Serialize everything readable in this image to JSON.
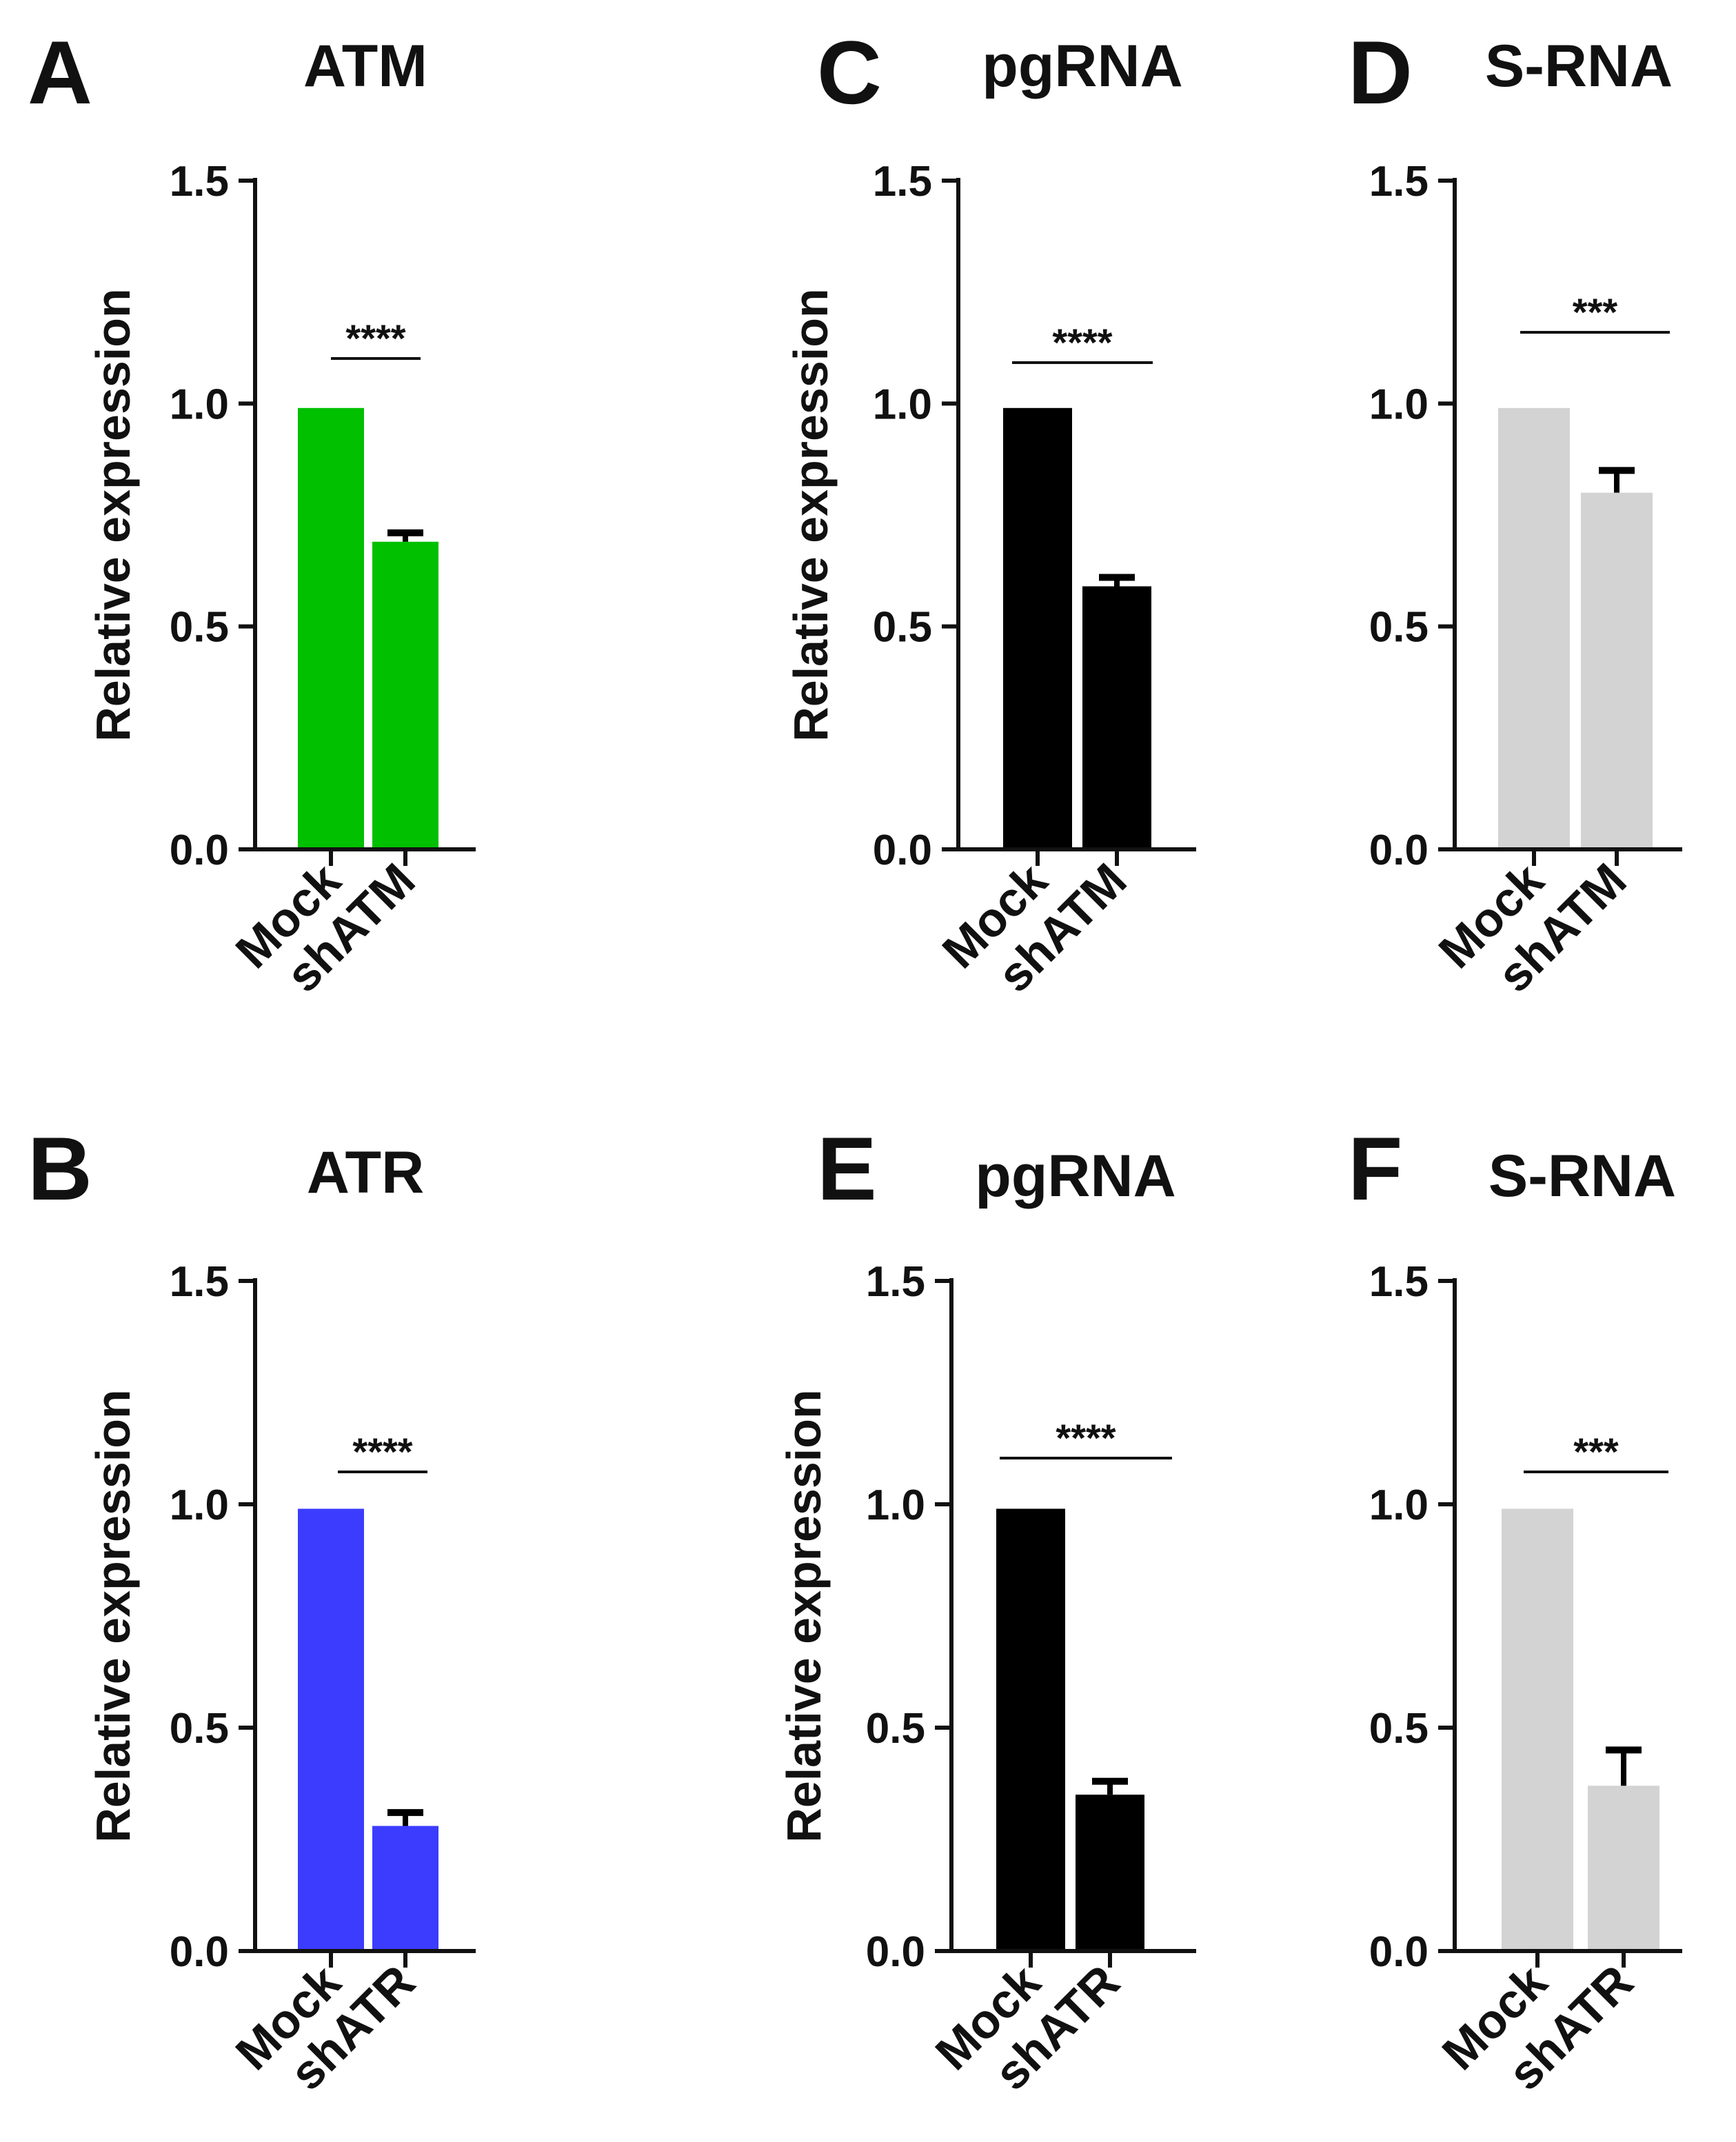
{
  "figure": {
    "panels": [
      {
        "letter": "A",
        "title": "ATM"
      },
      {
        "letter": "C",
        "title": "pgRNA"
      },
      {
        "letter": "D",
        "title": "S-RNA"
      },
      {
        "letter": "B",
        "title": "ATR"
      },
      {
        "letter": "E",
        "title": "pgRNA"
      },
      {
        "letter": "F",
        "title": "S-RNA"
      }
    ]
  },
  "chart_data": [
    {
      "panel": "A",
      "type": "bar",
      "title": "ATM",
      "xlabel": "",
      "ylabel": "Relative expression",
      "ylim": [
        0,
        1.5
      ],
      "yticks": [
        "0.0",
        "0.5",
        "1.0",
        "1.5"
      ],
      "categories": [
        "Mock",
        "shATM"
      ],
      "values": [
        0.99,
        0.69
      ],
      "errors": [
        0,
        0.02
      ],
      "significance": "****",
      "bar_color": "#00c000"
    },
    {
      "panel": "C",
      "type": "bar",
      "title": "pgRNA",
      "xlabel": "",
      "ylabel": "Relative expression",
      "ylim": [
        0,
        1.5
      ],
      "yticks": [
        "0.0",
        "0.5",
        "1.0",
        "1.5"
      ],
      "categories": [
        "Mock",
        "shATM"
      ],
      "values": [
        0.99,
        0.59
      ],
      "errors": [
        0,
        0.02
      ],
      "significance": "****",
      "bar_color": "#000000"
    },
    {
      "panel": "D",
      "type": "bar",
      "title": "S-RNA",
      "xlabel": "",
      "ylabel": "",
      "ylim": [
        0,
        1.5
      ],
      "yticks": [
        "0.0",
        "0.5",
        "1.0",
        "1.5"
      ],
      "categories": [
        "Mock",
        "shATM"
      ],
      "values": [
        0.99,
        0.8
      ],
      "errors": [
        0,
        0.05
      ],
      "significance": "***",
      "bar_color": "#d3d3d3"
    },
    {
      "panel": "B",
      "type": "bar",
      "title": "ATR",
      "xlabel": "",
      "ylabel": "Relative expression",
      "ylim": [
        0,
        1.5
      ],
      "yticks": [
        "0.0",
        "0.5",
        "1.0",
        "1.5"
      ],
      "categories": [
        "Mock",
        "shATR"
      ],
      "values": [
        0.99,
        0.28
      ],
      "errors": [
        0,
        0.03
      ],
      "significance": "****",
      "bar_color": "#3c3cff"
    },
    {
      "panel": "E",
      "type": "bar",
      "title": "pgRNA",
      "xlabel": "",
      "ylabel": "Relative expression",
      "ylim": [
        0,
        1.5
      ],
      "yticks": [
        "0.0",
        "0.5",
        "1.0",
        "1.5"
      ],
      "categories": [
        "Mock",
        "shATR"
      ],
      "values": [
        0.99,
        0.35
      ],
      "errors": [
        0,
        0.03
      ],
      "significance": "****",
      "bar_color": "#000000"
    },
    {
      "panel": "F",
      "type": "bar",
      "title": "S-RNA",
      "xlabel": "",
      "ylabel": "",
      "ylim": [
        0,
        1.5
      ],
      "yticks": [
        "0.0",
        "0.5",
        "1.0",
        "1.5"
      ],
      "categories": [
        "Mock",
        "shATR"
      ],
      "values": [
        0.99,
        0.37
      ],
      "errors": [
        0,
        0.08
      ],
      "significance": "***",
      "bar_color": "#d3d3d3"
    }
  ]
}
